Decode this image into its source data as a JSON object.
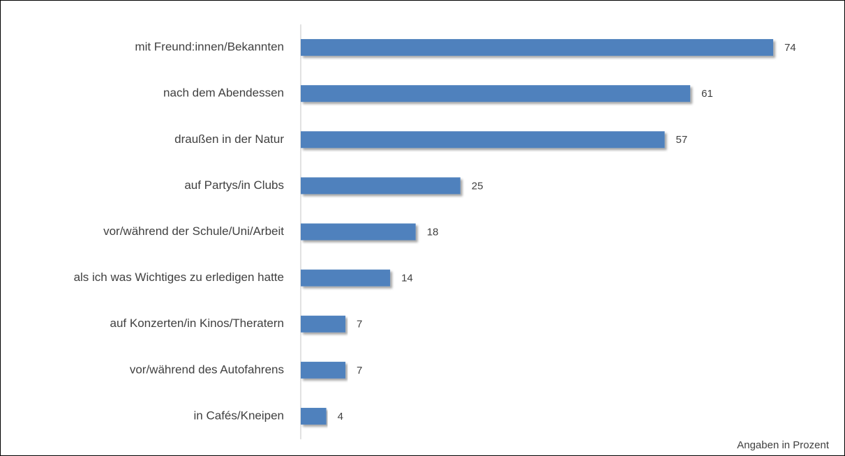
{
  "chart_data": {
    "type": "bar",
    "orientation": "horizontal",
    "categories": [
      "mit Freund:innen/Bekannten",
      "nach dem Abendessen",
      "draußen in der Natur",
      "auf Partys/in Clubs",
      "vor/während der Schule/Uni/Arbeit",
      "als ich was Wichtiges zu erledigen hatte",
      "auf Konzerten/in Kinos/Theratern",
      "vor/während des Autofahrens",
      "in Cafés/Kneipen"
    ],
    "values": [
      74,
      61,
      57,
      25,
      18,
      14,
      7,
      7,
      4
    ],
    "color": "#4f81bd",
    "xlim": [
      0,
      80
    ],
    "annotation": "Angaben in Prozent"
  }
}
